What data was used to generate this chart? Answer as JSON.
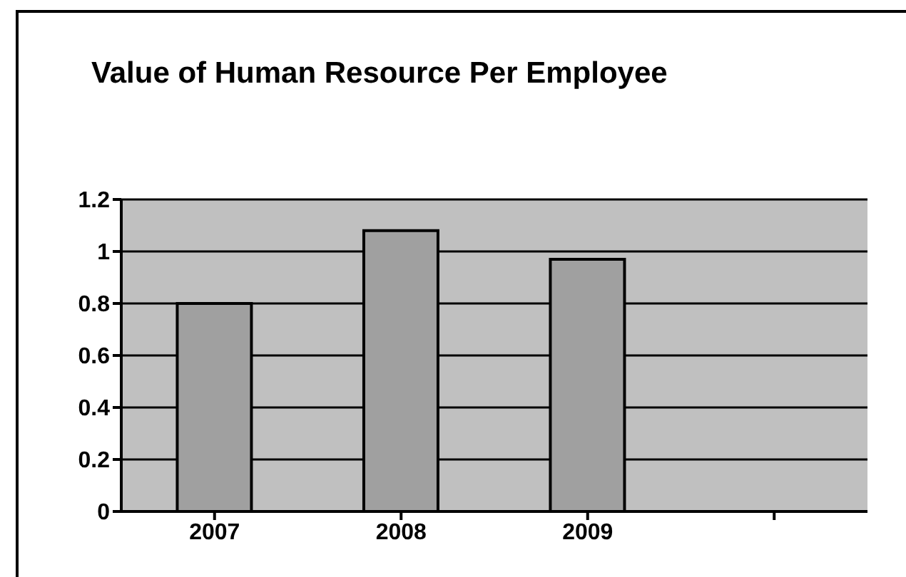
{
  "chart_data": {
    "type": "bar",
    "title": "Value of Human Resource Per Employee",
    "categories": [
      "2007",
      "2008",
      "2009",
      null
    ],
    "values": [
      0.8,
      1.08,
      0.97,
      null
    ],
    "color": "#a0a0a0",
    "ylim": [
      0,
      1.2
    ],
    "yticks": [
      0,
      0.2,
      0.4,
      0.6,
      0.8,
      1,
      1.2
    ],
    "grid": "y"
  }
}
